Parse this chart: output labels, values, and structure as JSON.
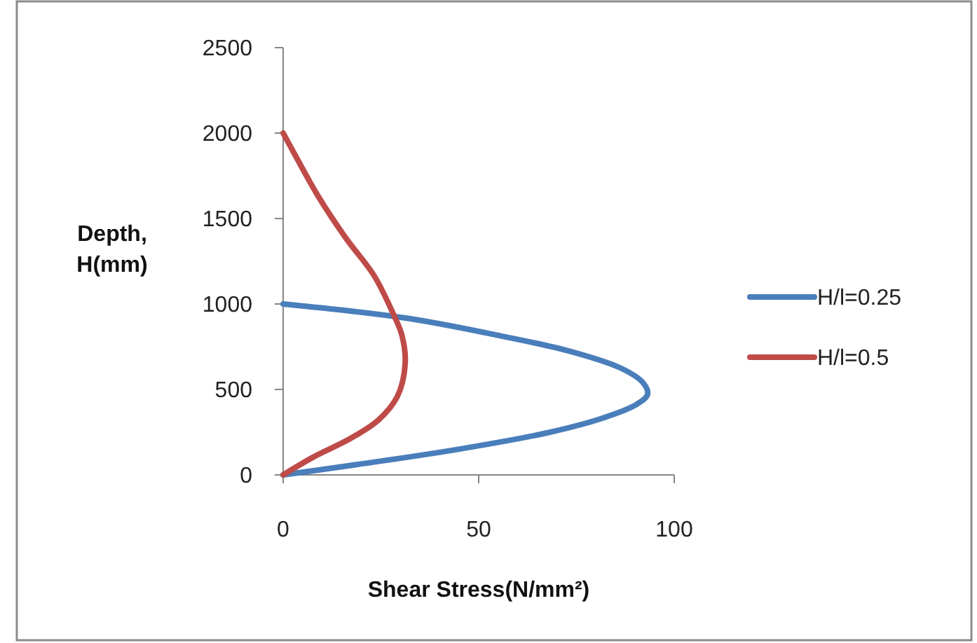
{
  "chart_data": {
    "type": "line",
    "xlabel": "Shear Stress(N/mm²)",
    "ylabel": "Depth, H(mm)",
    "xlim": [
      0,
      100
    ],
    "xticks": [
      0,
      50,
      100
    ],
    "ylim": [
      0,
      2500
    ],
    "yticks": [
      0,
      500,
      1000,
      1500,
      2000,
      2500
    ],
    "grid": false,
    "legend": "right",
    "marker": "none",
    "line_style": "solid",
    "series": [
      {
        "name": "H/l=0.25",
        "color": "#4a7ebb",
        "x": [
          0,
          19.6,
          43.5,
          67.5,
          81.8,
          90.2,
          93.2,
          92,
          86.6,
          73.4,
          55.5,
          31.6,
          0
        ],
        "values": [
          0,
          63,
          145,
          246,
          333,
          410,
          472,
          540,
          622,
          723,
          814,
          917,
          1000
        ]
      },
      {
        "name": "H/l=0.5",
        "color": "#be4b48",
        "x": [
          0,
          7.7,
          17.2,
          24.4,
          29.2,
          31.2,
          30.4,
          28,
          23.2,
          16,
          8.9,
          2.9,
          0
        ],
        "values": [
          0,
          104,
          213,
          322,
          459,
          650,
          814,
          950,
          1168,
          1387,
          1633,
          1878,
          2000
        ]
      }
    ]
  }
}
